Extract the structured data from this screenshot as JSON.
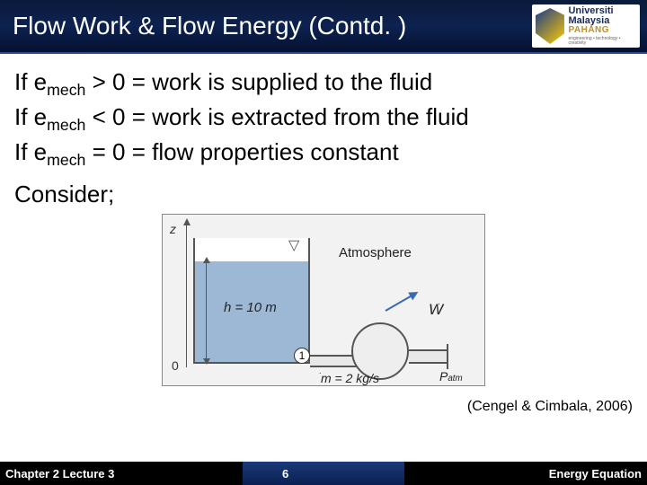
{
  "header": {
    "title": "Flow Work & Flow Energy (Contd. )",
    "logo": {
      "l1": "Universiti",
      "l2": "Malaysia",
      "l3": "PAHANG",
      "l4": "engineering • technology • creativity"
    }
  },
  "definitions": [
    {
      "var": "e",
      "sub": "mech",
      "op": ">",
      "rhs": "0 = work is supplied to the fluid"
    },
    {
      "var": "e",
      "sub": "mech",
      "op": "<",
      "rhs": "0 = work is extracted from the fluid"
    },
    {
      "var": "e",
      "sub": "mech",
      "op": "=",
      "rhs": "0 = flow properties constant"
    }
  ],
  "consider": "Consider;",
  "figure": {
    "z_label": "z",
    "zero": "0",
    "h_label": "h = 10 m",
    "atmosphere": "Atmosphere",
    "point1": "1",
    "wdot": "W",
    "patm_p": "P",
    "patm_sub": "atm",
    "mdot": "m = 2 kg/s",
    "colors": {
      "water": "#9db8d4",
      "border": "#555555",
      "background": "#f2f2f2",
      "arrow": "#3a6ab0"
    }
  },
  "citation": "(Cengel & Cimbala, 2006)",
  "footer": {
    "left": "Chapter 2 Lecture 3",
    "mid": "6",
    "right": "Energy Equation"
  }
}
